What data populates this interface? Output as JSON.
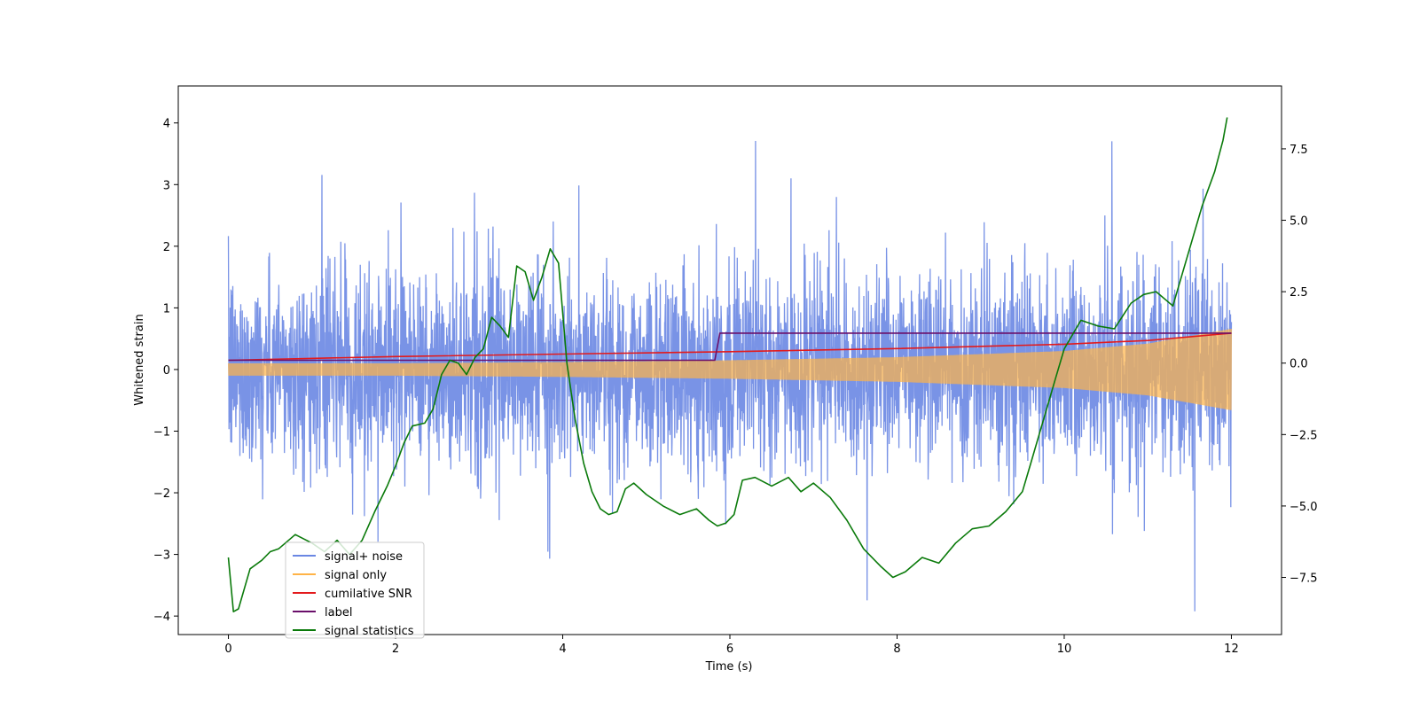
{
  "chart_data": {
    "type": "line",
    "title": "",
    "xlabel": "Time (s)",
    "ylabel_left": "Whitened strain",
    "ylabel_right": "",
    "xlim": [
      -0.6,
      12.6
    ],
    "ylim_left": [
      -4.3,
      4.6
    ],
    "ylim_right": [
      -9.5,
      9.7
    ],
    "x_ticks": [
      0,
      2,
      4,
      6,
      8,
      10,
      12
    ],
    "y_left_ticks": [
      -4,
      -3,
      -2,
      -1,
      0,
      1,
      2,
      3,
      4
    ],
    "y_right_ticks": [
      -7.5,
      -5.0,
      -2.5,
      0.0,
      2.5,
      5.0,
      7.5
    ],
    "y_right_tick_labels": [
      "−7.5",
      "−5.0",
      "−2.5",
      "0.0",
      "2.5",
      "5.0",
      "7.5"
    ],
    "grid": false,
    "legend_position": "lower-left",
    "series": [
      {
        "name": "signal+ noise",
        "axis": "left",
        "color": "#6a87e3",
        "style": "noise band",
        "x_range": [
          0,
          12
        ],
        "typical_amplitude": 1.5,
        "peak_values": [
          3.3,
          4.15,
          3.3,
          3.6,
          3.45,
          -3.8,
          -3.6,
          -3.5,
          -3.2
        ]
      },
      {
        "name": "signal only",
        "axis": "left",
        "color": "#ffb347",
        "style": "chirp",
        "x": [
          0,
          2,
          4,
          6,
          8,
          10,
          11,
          12
        ],
        "envelope": [
          0.1,
          0.1,
          0.12,
          0.15,
          0.2,
          0.3,
          0.42,
          0.66
        ]
      },
      {
        "name": "cumilative SNR",
        "axis": "left",
        "color": "#e31a1c",
        "x": [
          0,
          2,
          4,
          6,
          8,
          10,
          11,
          12
        ],
        "y": [
          0.15,
          0.21,
          0.25,
          0.29,
          0.34,
          0.41,
          0.47,
          0.59
        ]
      },
      {
        "name": "label",
        "axis": "left",
        "color": "#6a0f6a",
        "x": [
          0,
          5.82,
          5.88,
          12
        ],
        "y": [
          0.15,
          0.15,
          0.59,
          0.59
        ]
      },
      {
        "name": "signal statistics",
        "axis": "right",
        "color": "#0a7a0a",
        "x": [
          0,
          0.06,
          0.12,
          0.26,
          0.4,
          0.5,
          0.6,
          0.8,
          1.0,
          1.15,
          1.3,
          1.45,
          1.6,
          1.75,
          1.9,
          2.0,
          2.1,
          2.2,
          2.35,
          2.45,
          2.55,
          2.65,
          2.75,
          2.85,
          2.95,
          3.05,
          3.15,
          3.25,
          3.35,
          3.45,
          3.55,
          3.65,
          3.75,
          3.85,
          3.95,
          4.05,
          4.15,
          4.25,
          4.35,
          4.45,
          4.55,
          4.65,
          4.75,
          4.85,
          5.0,
          5.2,
          5.4,
          5.6,
          5.75,
          5.85,
          5.95,
          6.05,
          6.15,
          6.3,
          6.5,
          6.7,
          6.85,
          7.0,
          7.2,
          7.4,
          7.6,
          7.8,
          7.95,
          8.1,
          8.3,
          8.5,
          8.7,
          8.9,
          9.1,
          9.3,
          9.5,
          9.6,
          9.7,
          9.8,
          9.9,
          10.0,
          10.2,
          10.4,
          10.6,
          10.8,
          10.95,
          11.1,
          11.3,
          11.5,
          11.65,
          11.8,
          11.9,
          11.95
        ],
        "y": [
          -6.8,
          -8.7,
          -8.6,
          -7.2,
          -6.9,
          -6.6,
          -6.5,
          -6.0,
          -6.3,
          -6.6,
          -6.2,
          -6.7,
          -6.2,
          -5.2,
          -4.3,
          -3.6,
          -2.8,
          -2.2,
          -2.1,
          -1.6,
          -0.4,
          0.1,
          0.0,
          -0.4,
          0.2,
          0.5,
          1.6,
          1.3,
          0.9,
          3.4,
          3.2,
          2.2,
          3.0,
          4.0,
          3.5,
          0.0,
          -2.0,
          -3.5,
          -4.5,
          -5.1,
          -5.3,
          -5.2,
          -4.4,
          -4.2,
          -4.6,
          -5.0,
          -5.3,
          -5.1,
          -5.5,
          -5.7,
          -5.6,
          -5.3,
          -4.1,
          -4.0,
          -4.3,
          -4.0,
          -4.5,
          -4.2,
          -4.7,
          -5.5,
          -6.5,
          -7.1,
          -7.5,
          -7.3,
          -6.8,
          -7.0,
          -6.3,
          -5.8,
          -5.7,
          -5.2,
          -4.5,
          -3.5,
          -2.5,
          -1.5,
          -0.5,
          0.5,
          1.5,
          1.3,
          1.2,
          2.1,
          2.4,
          2.5,
          2.0,
          4.0,
          5.5,
          6.7,
          7.8,
          8.6
        ]
      }
    ]
  }
}
